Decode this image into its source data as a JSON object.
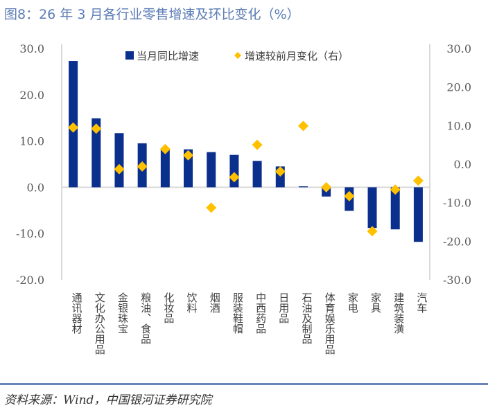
{
  "title": "图8：26 年 3 月各行业零售增速及环比变化（%）",
  "source": "资料来源：Wind，中国银河证券研究院",
  "colors": {
    "bar": "#0a2f8c",
    "diamond": "#ffc000",
    "axis": "#d9d9d9",
    "title": "#5a7bb5"
  },
  "chart_data": {
    "type": "bar",
    "title": "26 年 3 月各行业零售增速及环比变化（%）",
    "categories": [
      "通讯器材",
      "文化办公用品",
      "金银珠宝",
      "粮油、食品",
      "化妆品",
      "饮料",
      "烟酒",
      "服装鞋帽",
      "中西药品",
      "日用品",
      "石油及制品",
      "体育娱乐用品",
      "家电",
      "家具",
      "建筑装潢",
      "汽车"
    ],
    "series": [
      {
        "name": "当月同比增速",
        "type": "bar",
        "axis": "left",
        "values": [
          27.3,
          14.9,
          11.7,
          9.5,
          8.2,
          8.2,
          7.6,
          7.0,
          5.7,
          4.5,
          0.2,
          -2.0,
          -5.1,
          -8.8,
          -9.1,
          -11.8
        ]
      },
      {
        "name": "增速较前月变化（右）",
        "type": "scatter",
        "marker": "diamond",
        "axis": "right",
        "values": [
          9.5,
          9.2,
          -1.3,
          -0.6,
          3.9,
          2.3,
          -11.3,
          -3.4,
          5.0,
          -1.9,
          9.9,
          -6.0,
          -8.3,
          -17.4,
          -6.6,
          -4.3
        ]
      }
    ],
    "y_left": {
      "range": [
        -20,
        30
      ],
      "ticks": [
        "30.0",
        "20.0",
        "10.0",
        "0.0",
        "-10.0",
        "-20.0"
      ],
      "tick_values": [
        30,
        20,
        10,
        0,
        -10,
        -20
      ]
    },
    "y_right": {
      "range": [
        -30,
        30
      ],
      "ticks": [
        "30.0",
        "20.0",
        "10.0",
        "0.0",
        "-10.0",
        "-20.0",
        "-30.0"
      ],
      "tick_values": [
        30,
        20,
        10,
        0,
        -10,
        -20,
        -30
      ]
    },
    "xlabel": "",
    "ylabel": "",
    "legend": {
      "position": "top",
      "entries": [
        "当月同比增速",
        "增速较前月变化（右）"
      ]
    },
    "grid": false
  }
}
